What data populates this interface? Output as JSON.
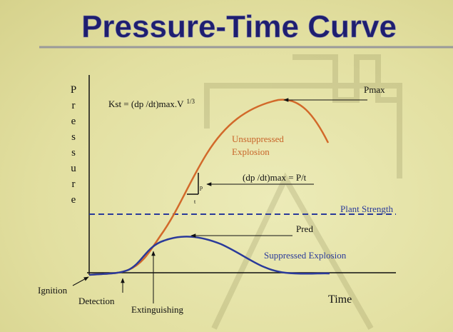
{
  "title": "Pressure-Time Curve",
  "y_axis_label": "Pressure",
  "x_axis_label": "Time",
  "formula": {
    "text": "Kst = (dp /dt)max.V",
    "superscript": "1/3"
  },
  "labels": {
    "pmax": "Pmax",
    "unsuppressed": [
      "Unsuppressed",
      "Explosion"
    ],
    "rate": "(dp /dt)max = P/t",
    "rate_p": "p",
    "rate_t": "t",
    "plant_strength": "Plant Strength",
    "pred": "Pred",
    "suppressed": "Suppressed Explosion",
    "ignition": "Ignition",
    "detection": "Detection",
    "extinguishing": "Extinguishing"
  }
}
